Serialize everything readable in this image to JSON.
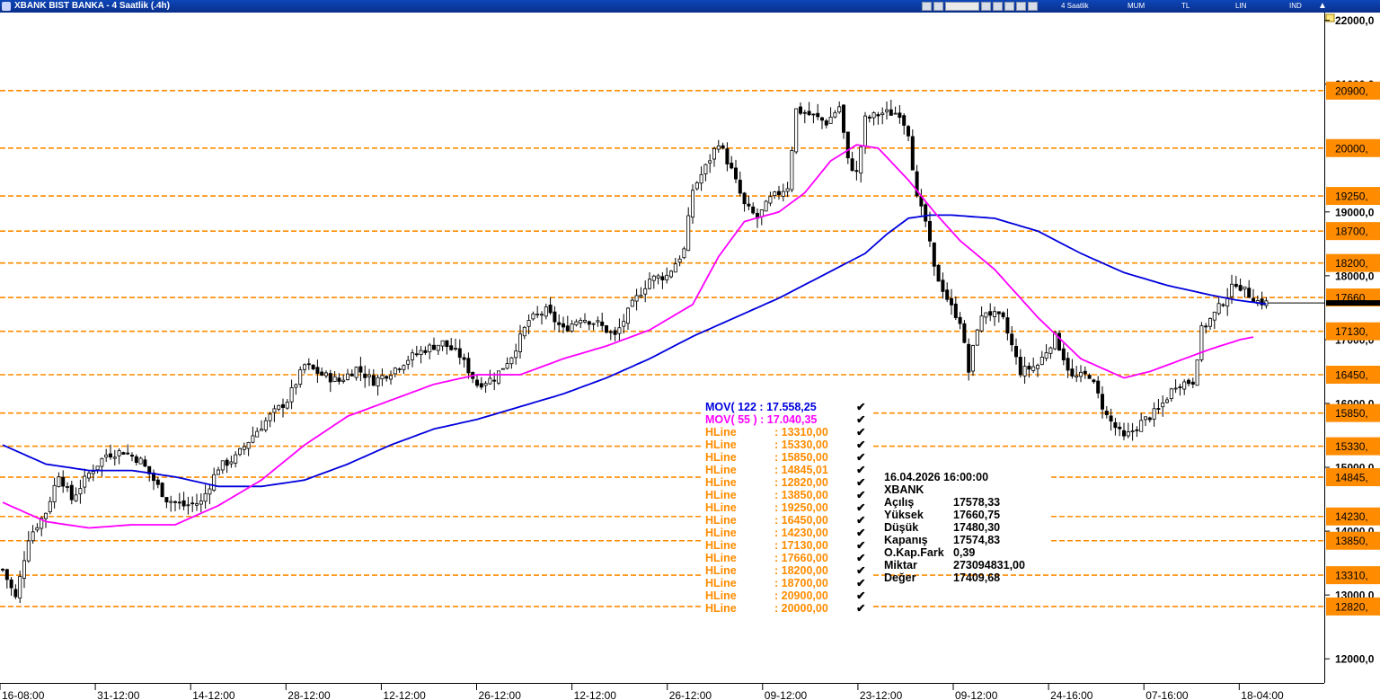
{
  "window": {
    "title": "XBANK BIST BANKA - 4 Saatlik (.4h)"
  },
  "toolbar": {
    "period_label": "4 Saatlik",
    "buttons": [
      "MUM",
      "TL",
      "LIN",
      "IND"
    ],
    "icons": [
      "save-icon",
      "print-icon",
      "zoom-icon",
      "draw-icon",
      "pencil-icon",
      "color-icon",
      "settings-icon",
      "arrow-icon"
    ]
  },
  "colors": {
    "candle": "#000000",
    "mov122": "#0000dd",
    "mov55": "#ff00ff",
    "hline": "#ff8c00",
    "hline_tag": "#ff8c00",
    "title_bg": "#0a3aa6"
  },
  "legend": {
    "mov122": "MOV( 122 : 17.558,25",
    "mov55": "MOV( 55 ) : 17.040,35",
    "hlines": [
      {
        "name": "HLine",
        "value": ": 13310,00"
      },
      {
        "name": "HLine",
        "value": ": 15330,00"
      },
      {
        "name": "HLine",
        "value": ": 15850,00"
      },
      {
        "name": "HLine",
        "value": ": 14845,01"
      },
      {
        "name": "HLine",
        "value": ": 12820,00"
      },
      {
        "name": "HLine",
        "value": ": 13850,00"
      },
      {
        "name": "HLine",
        "value": ": 19250,00"
      },
      {
        "name": "HLine",
        "value": ": 16450,00"
      },
      {
        "name": "HLine",
        "value": ": 14230,00"
      },
      {
        "name": "HLine",
        "value": ": 17130,00"
      },
      {
        "name": "HLine",
        "value": ": 17660,00"
      },
      {
        "name": "HLine",
        "value": ": 18200,00"
      },
      {
        "name": "HLine",
        "value": ": 18700,00"
      },
      {
        "name": "HLine",
        "value": ": 20900,00"
      },
      {
        "name": "HLine",
        "value": ": 20000,00"
      }
    ]
  },
  "info_box": {
    "datetime": "16.04.2026  16:00:00",
    "symbol": "XBANK",
    "rows": [
      {
        "label": "Açılış",
        "value": "17578,33"
      },
      {
        "label": "Yüksek",
        "value": "17660,75"
      },
      {
        "label": "Düşük",
        "value": "17480,30"
      },
      {
        "label": "Kapanış",
        "value": "17574,83"
      },
      {
        "label": "O.Kap.Fark",
        "value": "0,39"
      },
      {
        "label": "Miktar",
        "value": "273094831,00"
      },
      {
        "label": "Değer",
        "value": "17409,68"
      }
    ]
  },
  "chart_data": {
    "type": "candlestick",
    "symbol": "XBANK",
    "ylim": [
      11600,
      22300
    ],
    "y_ticks": [
      {
        "value": 22000,
        "label": "22000,0"
      },
      {
        "value": 21000,
        "label": "21000,0"
      },
      {
        "value": 19000,
        "label": "19000,0"
      },
      {
        "value": 18000,
        "label": "18000,0"
      },
      {
        "value": 17000,
        "label": "17000,0"
      },
      {
        "value": 16000,
        "label": "16000,0"
      },
      {
        "value": 15000,
        "label": "15000,0"
      },
      {
        "value": 14000,
        "label": "14000,0"
      },
      {
        "value": 13000,
        "label": "13000,0"
      },
      {
        "value": 12000,
        "label": "12000,0"
      }
    ],
    "x_ticks": [
      "16-08:00",
      "31-12:00",
      "14-12:00",
      "28-12:00",
      "12-12:00",
      "26-12:00",
      "12-12:00",
      "26-12:00",
      "09-12:00",
      "23-12:00",
      "09-12:00",
      "24-16:00",
      "07-16:00",
      "18-04:00"
    ],
    "x_tick_bars": [
      0,
      22,
      44,
      66,
      88,
      110,
      132,
      154,
      176,
      198,
      220,
      242,
      264,
      286
    ],
    "hlines": [
      {
        "value": 20900,
        "label": "20900,"
      },
      {
        "value": 20000,
        "label": "20000,"
      },
      {
        "value": 19250,
        "label": "19250,"
      },
      {
        "value": 18700,
        "label": "18700,"
      },
      {
        "value": 18200,
        "label": "18200,"
      },
      {
        "value": 17660,
        "label": "17660,"
      },
      {
        "value": 17130,
        "label": "17130,"
      },
      {
        "value": 16450,
        "label": "16450,"
      },
      {
        "value": 15850,
        "label": "15850,"
      },
      {
        "value": 15330,
        "label": "15330,"
      },
      {
        "value": 14845,
        "label": "14845,"
      },
      {
        "value": 14230,
        "label": "14230,"
      },
      {
        "value": 13850,
        "label": "13850,"
      },
      {
        "value": 13310,
        "label": "13310,"
      },
      {
        "value": 12820,
        "label": "12820,"
      }
    ],
    "last_price": 17574.83,
    "close_anchors": [
      [
        0,
        13400
      ],
      [
        3,
        12950
      ],
      [
        6,
        13900
      ],
      [
        10,
        14300
      ],
      [
        13,
        14900
      ],
      [
        16,
        14500
      ],
      [
        20,
        14900
      ],
      [
        24,
        15200
      ],
      [
        28,
        15250
      ],
      [
        32,
        15100
      ],
      [
        35,
        14800
      ],
      [
        38,
        14500
      ],
      [
        42,
        14400
      ],
      [
        46,
        14450
      ],
      [
        50,
        15000
      ],
      [
        54,
        15150
      ],
      [
        58,
        15500
      ],
      [
        62,
        15800
      ],
      [
        66,
        16050
      ],
      [
        70,
        16600
      ],
      [
        74,
        16450
      ],
      [
        78,
        16350
      ],
      [
        82,
        16550
      ],
      [
        86,
        16350
      ],
      [
        90,
        16500
      ],
      [
        94,
        16700
      ],
      [
        98,
        16850
      ],
      [
        102,
        16950
      ],
      [
        106,
        16750
      ],
      [
        110,
        16300
      ],
      [
        114,
        16400
      ],
      [
        118,
        16750
      ],
      [
        122,
        17300
      ],
      [
        126,
        17450
      ],
      [
        130,
        17150
      ],
      [
        134,
        17350
      ],
      [
        138,
        17250
      ],
      [
        142,
        17050
      ],
      [
        146,
        17550
      ],
      [
        150,
        17950
      ],
      [
        154,
        18000
      ],
      [
        158,
        18400
      ],
      [
        160,
        19350
      ],
      [
        163,
        19700
      ],
      [
        166,
        20100
      ],
      [
        169,
        19650
      ],
      [
        172,
        19100
      ],
      [
        175,
        18900
      ],
      [
        178,
        19200
      ],
      [
        182,
        19400
      ],
      [
        184,
        20600
      ],
      [
        188,
        20500
      ],
      [
        191,
        20400
      ],
      [
        194,
        20650
      ],
      [
        196,
        19800
      ],
      [
        198,
        19600
      ],
      [
        200,
        20450
      ],
      [
        204,
        20550
      ],
      [
        208,
        20550
      ],
      [
        210,
        20250
      ],
      [
        212,
        19200
      ],
      [
        214,
        18850
      ],
      [
        216,
        18100
      ],
      [
        218,
        17800
      ],
      [
        220,
        17500
      ],
      [
        222,
        17300
      ],
      [
        224,
        16500
      ],
      [
        226,
        17200
      ],
      [
        228,
        17450
      ],
      [
        232,
        17300
      ],
      [
        236,
        16500
      ],
      [
        240,
        16600
      ],
      [
        244,
        17050
      ],
      [
        248,
        16400
      ],
      [
        252,
        16450
      ],
      [
        256,
        15800
      ],
      [
        260,
        15450
      ],
      [
        264,
        15700
      ],
      [
        268,
        15900
      ],
      [
        272,
        16300
      ],
      [
        276,
        16350
      ],
      [
        278,
        17150
      ],
      [
        281,
        17400
      ],
      [
        283,
        17600
      ],
      [
        286,
        17900
      ],
      [
        288,
        17760
      ],
      [
        291,
        17600
      ],
      [
        293,
        17575
      ]
    ],
    "ma_anchors": {
      "mov122": [
        [
          0,
          15350
        ],
        [
          10,
          15050
        ],
        [
          20,
          14950
        ],
        [
          30,
          14950
        ],
        [
          40,
          14850
        ],
        [
          50,
          14700
        ],
        [
          60,
          14700
        ],
        [
          70,
          14800
        ],
        [
          80,
          15050
        ],
        [
          90,
          15350
        ],
        [
          100,
          15600
        ],
        [
          110,
          15750
        ],
        [
          120,
          15950
        ],
        [
          130,
          16150
        ],
        [
          140,
          16400
        ],
        [
          150,
          16700
        ],
        [
          160,
          17050
        ],
        [
          170,
          17350
        ],
        [
          180,
          17650
        ],
        [
          190,
          18000
        ],
        [
          200,
          18350
        ],
        [
          205,
          18650
        ],
        [
          210,
          18900
        ],
        [
          215,
          18950
        ],
        [
          220,
          18950
        ],
        [
          230,
          18900
        ],
        [
          240,
          18700
        ],
        [
          250,
          18350
        ],
        [
          260,
          18050
        ],
        [
          270,
          17850
        ],
        [
          280,
          17700
        ],
        [
          286,
          17620
        ],
        [
          293,
          17558
        ]
      ],
      "mov55": [
        [
          0,
          14450
        ],
        [
          10,
          14150
        ],
        [
          20,
          14050
        ],
        [
          30,
          14100
        ],
        [
          40,
          14100
        ],
        [
          50,
          14400
        ],
        [
          60,
          14800
        ],
        [
          70,
          15350
        ],
        [
          80,
          15800
        ],
        [
          90,
          16050
        ],
        [
          100,
          16300
        ],
        [
          110,
          16450
        ],
        [
          120,
          16450
        ],
        [
          130,
          16700
        ],
        [
          140,
          16900
        ],
        [
          150,
          17150
        ],
        [
          160,
          17550
        ],
        [
          166,
          18300
        ],
        [
          172,
          18850
        ],
        [
          180,
          19000
        ],
        [
          186,
          19300
        ],
        [
          192,
          19800
        ],
        [
          198,
          20050
        ],
        [
          203,
          20000
        ],
        [
          210,
          19500
        ],
        [
          216,
          19000
        ],
        [
          222,
          18550
        ],
        [
          230,
          18100
        ],
        [
          240,
          17350
        ],
        [
          250,
          16700
        ],
        [
          260,
          16400
        ],
        [
          266,
          16500
        ],
        [
          272,
          16650
        ],
        [
          280,
          16850
        ],
        [
          287,
          17000
        ],
        [
          290,
          17040
        ]
      ]
    }
  }
}
